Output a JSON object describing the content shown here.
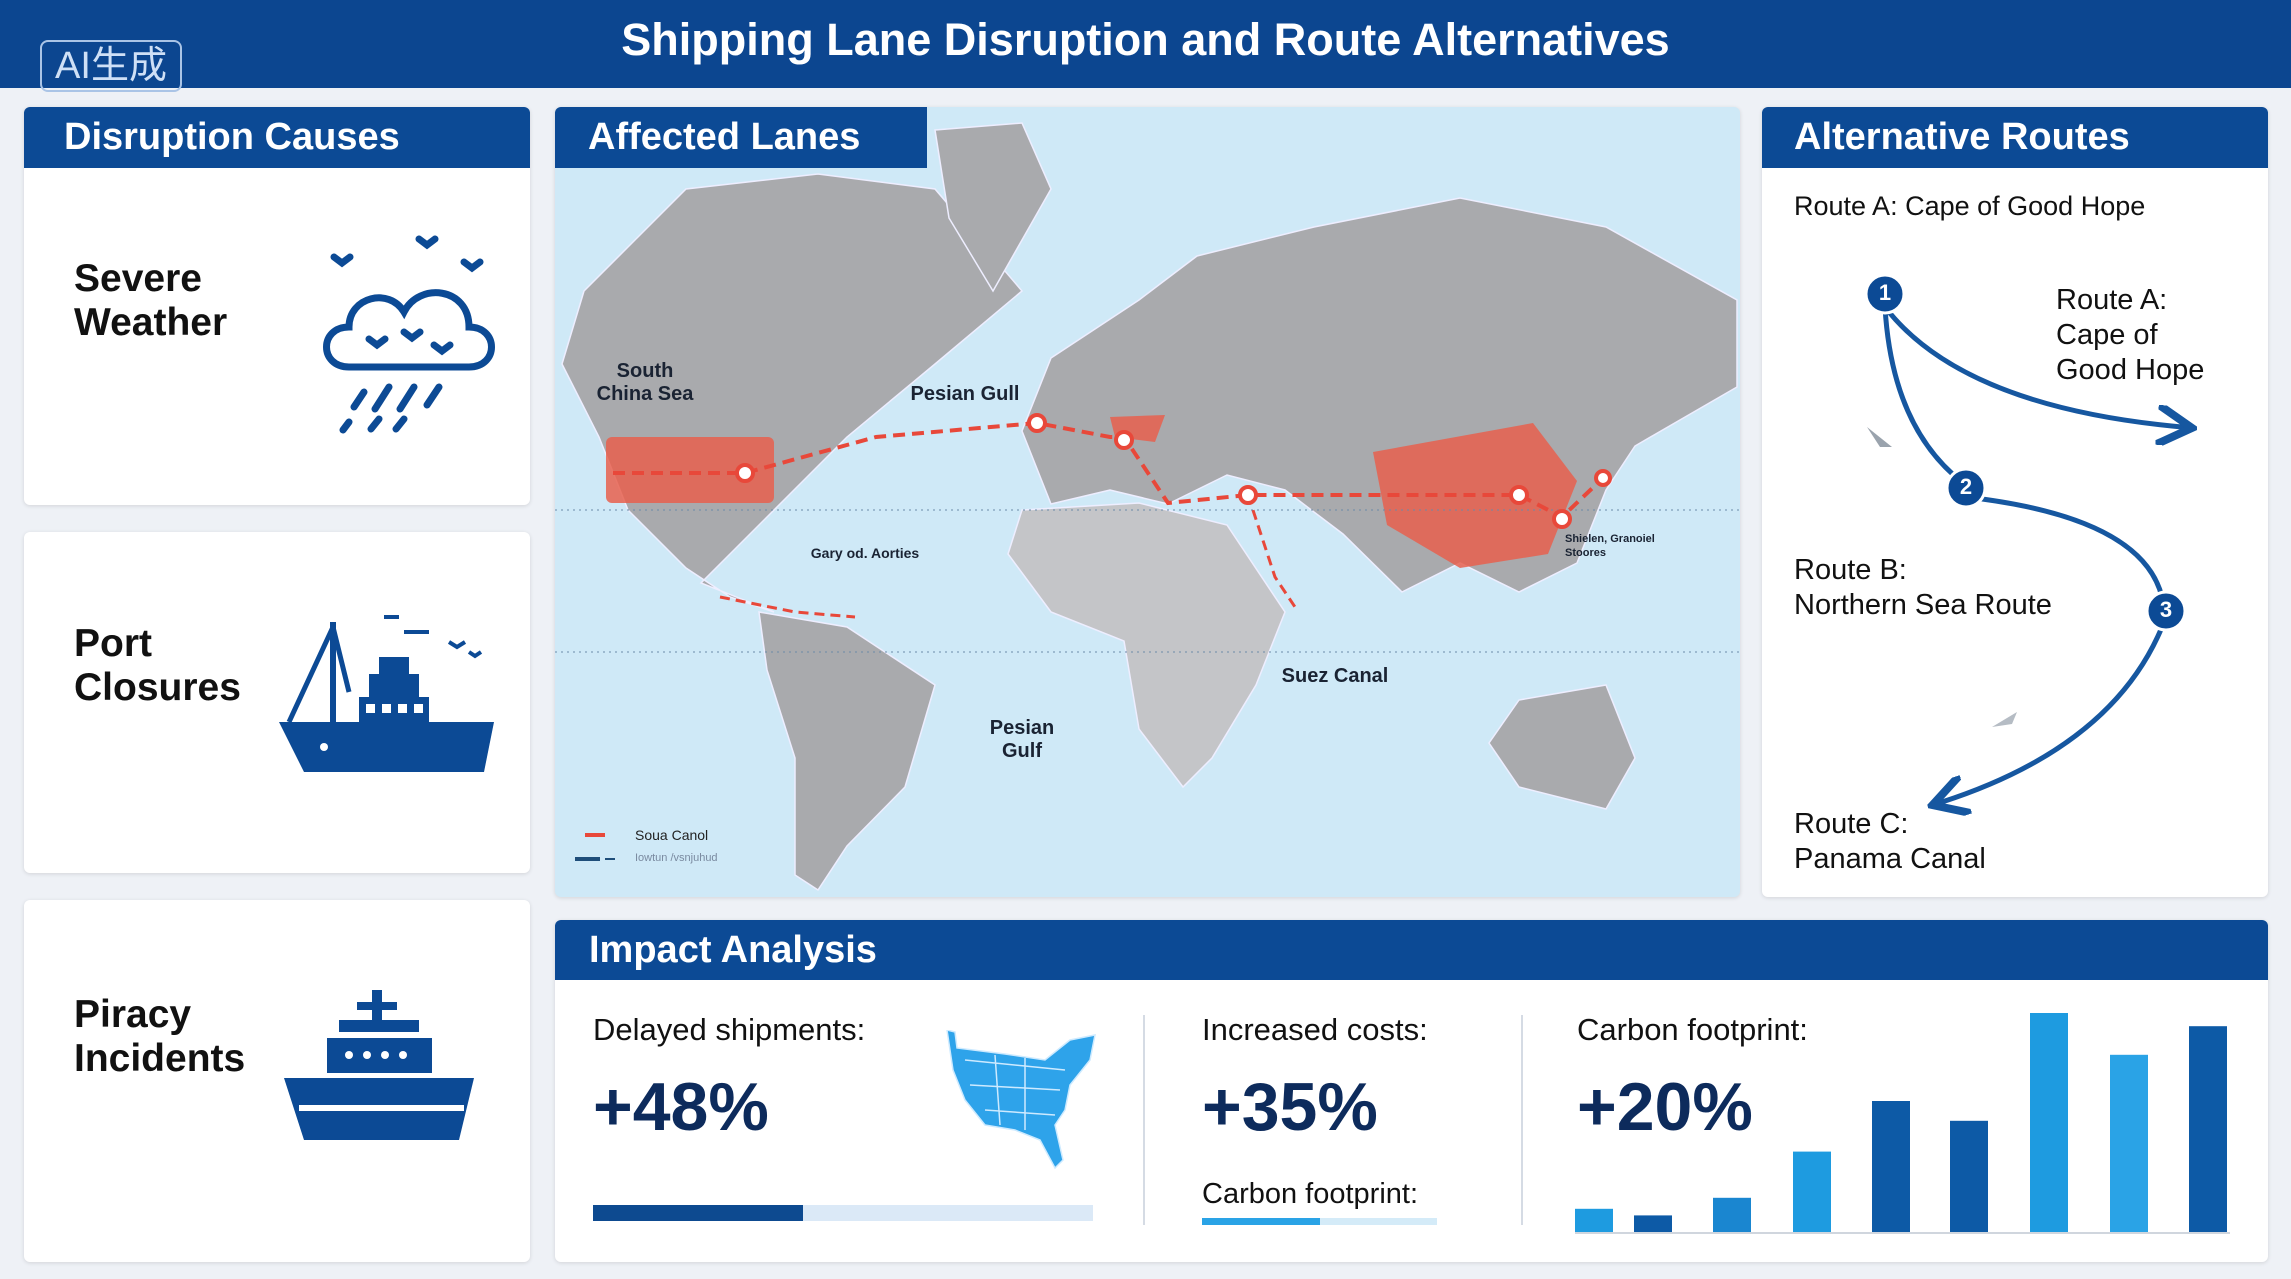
{
  "header": {
    "title": "Shipping Lane Disruption and Route Alternatives",
    "badge": "AI生成"
  },
  "colors": {
    "navy": "#0c4a95",
    "dark_blue": "#0d5aa6",
    "light_blue": "#1e9be0",
    "disruption_red": "#e8483a",
    "ocean": "#cfe9f7",
    "land": "#a9aaad"
  },
  "causes": {
    "title": "Disruption Causes",
    "items": [
      {
        "label": "Severe\nWeather",
        "icon": "storm-cloud-icon"
      },
      {
        "label": "Port\nClosures",
        "icon": "cargo-ship-icon"
      },
      {
        "label": "Piracy\nIncidents",
        "icon": "ship-icon"
      }
    ]
  },
  "map": {
    "title": "Affected Lanes",
    "labels": {
      "south_china_sea": "South\nChina Sea",
      "pesian_gull": "Pesian Gull",
      "gary": "Gary od. Aorties",
      "suez": "Suez Canal",
      "pesian_gulf": "Pesian\nGulf",
      "shielen": "Shielen, Granoiel\nStoores"
    },
    "legend": [
      {
        "label": "Soua Canol",
        "color": "#e8483a"
      },
      {
        "label": "Iowtun /vsnjuhud",
        "color": "#1f4e7a"
      }
    ]
  },
  "routes": {
    "title": "Alternative Routes",
    "subtitle": "Route A: Cape of Good Hope",
    "route_a": "Route A:\nCape of\nGood Hope",
    "route_b": "Route B:\nNorthern Sea Route",
    "route_c": "Route C:\nPanama Canal",
    "markers": [
      "1",
      "2",
      "3"
    ]
  },
  "impact": {
    "title": "Impact Analysis",
    "delayed": {
      "label": "Delayed shipments:",
      "value": "+48%",
      "progress_percent": 42
    },
    "costs": {
      "label": "Increased costs:",
      "value": "+35%",
      "sub_label": "Carbon footprint:",
      "progress_percent": 50
    },
    "carbon": {
      "label": "Carbon footprint:",
      "value": "+20%"
    }
  },
  "chart_data": {
    "type": "bar",
    "title": "",
    "values": [
      11,
      8,
      16,
      37,
      60,
      51,
      100,
      81,
      94
    ],
    "colors": [
      "#1e9be0",
      "#0d5aa6",
      "#1a86d0",
      "#1e9be0",
      "#0d5aa6",
      "#0d5aa6",
      "#1e9be0",
      "#2aa3e6",
      "#0d5aa6"
    ],
    "grid": false
  }
}
